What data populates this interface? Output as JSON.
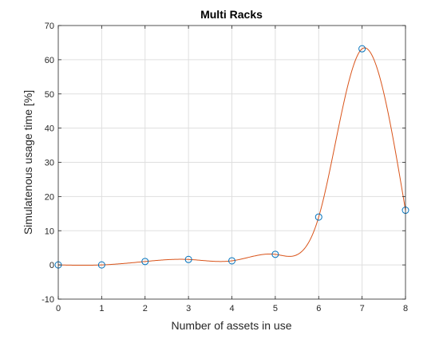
{
  "chart_data": {
    "type": "line",
    "title": "Multi Racks",
    "xlabel": "Number of assets in use",
    "ylabel": "Simulatenous usage time [%]",
    "xlim": [
      0,
      8
    ],
    "ylim": [
      -10,
      70
    ],
    "xticks": [
      "0",
      "1",
      "2",
      "3",
      "4",
      "5",
      "6",
      "7",
      "8"
    ],
    "yticks": [
      "-10",
      "0",
      "10",
      "20",
      "30",
      "40",
      "50",
      "60",
      "70"
    ],
    "grid": true,
    "series": [
      {
        "style": "markers (open circles)",
        "color": "#0072BD",
        "x": [
          0,
          1,
          2,
          3,
          4,
          5,
          6,
          7,
          8
        ],
        "y": [
          0.0,
          0.0,
          1.0,
          1.6,
          1.2,
          3.1,
          14.0,
          63.2,
          16.0
        ]
      },
      {
        "style": "smooth interpolating curve",
        "color": "#D95319",
        "x": [
          0,
          1,
          2,
          3,
          4,
          5,
          6,
          7,
          8
        ],
        "y": [
          0.0,
          0.0,
          1.0,
          1.6,
          1.2,
          3.1,
          14.0,
          63.2,
          16.0
        ]
      }
    ]
  }
}
